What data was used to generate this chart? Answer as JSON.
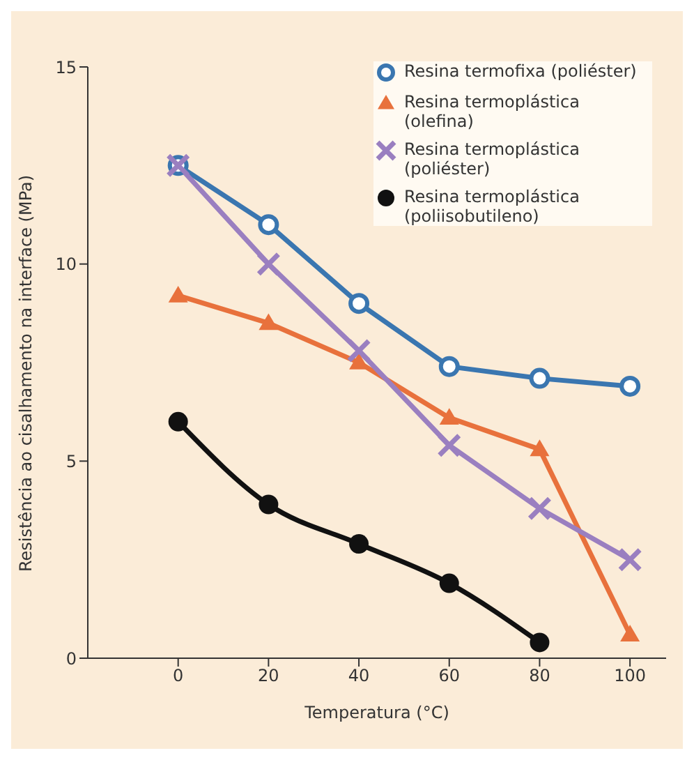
{
  "chart_data": {
    "type": "line",
    "xlabel": "Temperatura (°C)",
    "ylabel": "Resistência ao cisalhamento na interface (MPa)",
    "x": [
      0,
      20,
      40,
      60,
      80,
      100
    ],
    "xlim": [
      -20,
      108
    ],
    "xticks": [
      0,
      20,
      40,
      60,
      80,
      100
    ],
    "ylim": [
      0,
      15
    ],
    "yticks": [
      0,
      5,
      10,
      15
    ],
    "grid": false,
    "legend": "top right",
    "series": [
      {
        "name": "Resina termofixa (poliéster)",
        "color": "#3a76b0",
        "marker": "circle",
        "values": [
          12.5,
          11.0,
          9.0,
          7.4,
          7.1,
          6.9
        ]
      },
      {
        "name": "Resina termoplástica (olefina)",
        "color": "#e8713c",
        "marker": "triangle",
        "values": [
          9.2,
          8.5,
          7.5,
          6.1,
          5.3,
          0.6
        ]
      },
      {
        "name": "Resina termoplástica (poliéster)",
        "color": "#9a7fc0",
        "marker": "cross",
        "values": [
          12.5,
          10.0,
          7.8,
          5.4,
          3.8,
          2.5
        ]
      },
      {
        "name": "Resina termoplástica (poliisobutileno)",
        "color": "#111111",
        "marker": "circle",
        "values": [
          6.0,
          3.9,
          2.9,
          1.9,
          0.4,
          null
        ]
      }
    ]
  }
}
